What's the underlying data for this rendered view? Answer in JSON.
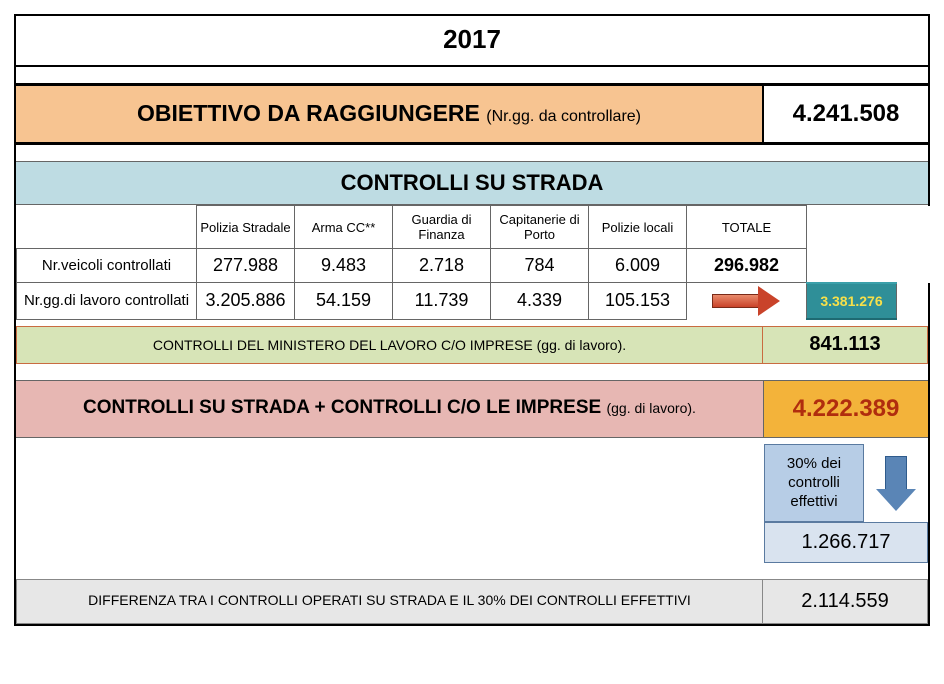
{
  "year": "2017",
  "obiettivo": {
    "label_main": "OBIETTIVO DA RAGGIUNGERE",
    "label_sub": "(Nr.gg. da controllare)",
    "value": "4.241.508"
  },
  "controlli_strada": {
    "header": "CONTROLLI SU STRADA",
    "columns": [
      "Polizia Stradale",
      "Arma CC**",
      "Guardia di Finanza",
      "Capitanerie di Porto",
      "Polizie locali",
      "TOTALE"
    ],
    "rows": [
      {
        "label": "Nr.veicoli controllati",
        "values": [
          "277.988",
          "9.483",
          "2.718",
          "784",
          "6.009"
        ],
        "totale": "296.982"
      },
      {
        "label": "Nr.gg.di lavoro controllati",
        "values": [
          "3.205.886",
          "54.159",
          "11.739",
          "4.339",
          "105.153"
        ],
        "totale": ""
      }
    ],
    "result_value": "3.381.276",
    "header_bg": "#bedce3",
    "result_bg": "#2f8f98",
    "result_fg": "#f7e04a"
  },
  "ministero": {
    "label": "CONTROLLI DEL MINISTERO DEL LAVORO C/O IMPRESE (gg. di lavoro).",
    "value": "841.113",
    "bg": "#d7e4b7"
  },
  "somma": {
    "label_main": "CONTROLLI SU STRADA + CONTROLLI C/O LE IMPRESE",
    "label_sub": "(gg. di lavoro).",
    "value": "4.222.389",
    "label_bg": "#e7b7b3",
    "value_bg": "#f3b33a",
    "value_fg": "#b02d0e"
  },
  "percentuale": {
    "box_text": "30% dei controlli effettivi",
    "value": "1.266.717",
    "box_bg": "#b7cde6",
    "value_bg": "#d9e3ef"
  },
  "differenza": {
    "label": "DIFFERENZA TRA I CONTROLLI OPERATI SU STRADA E IL 30% DEI  CONTROLLI EFFETTIVI",
    "value": "2.114.559",
    "bg": "#e7e7e7"
  }
}
